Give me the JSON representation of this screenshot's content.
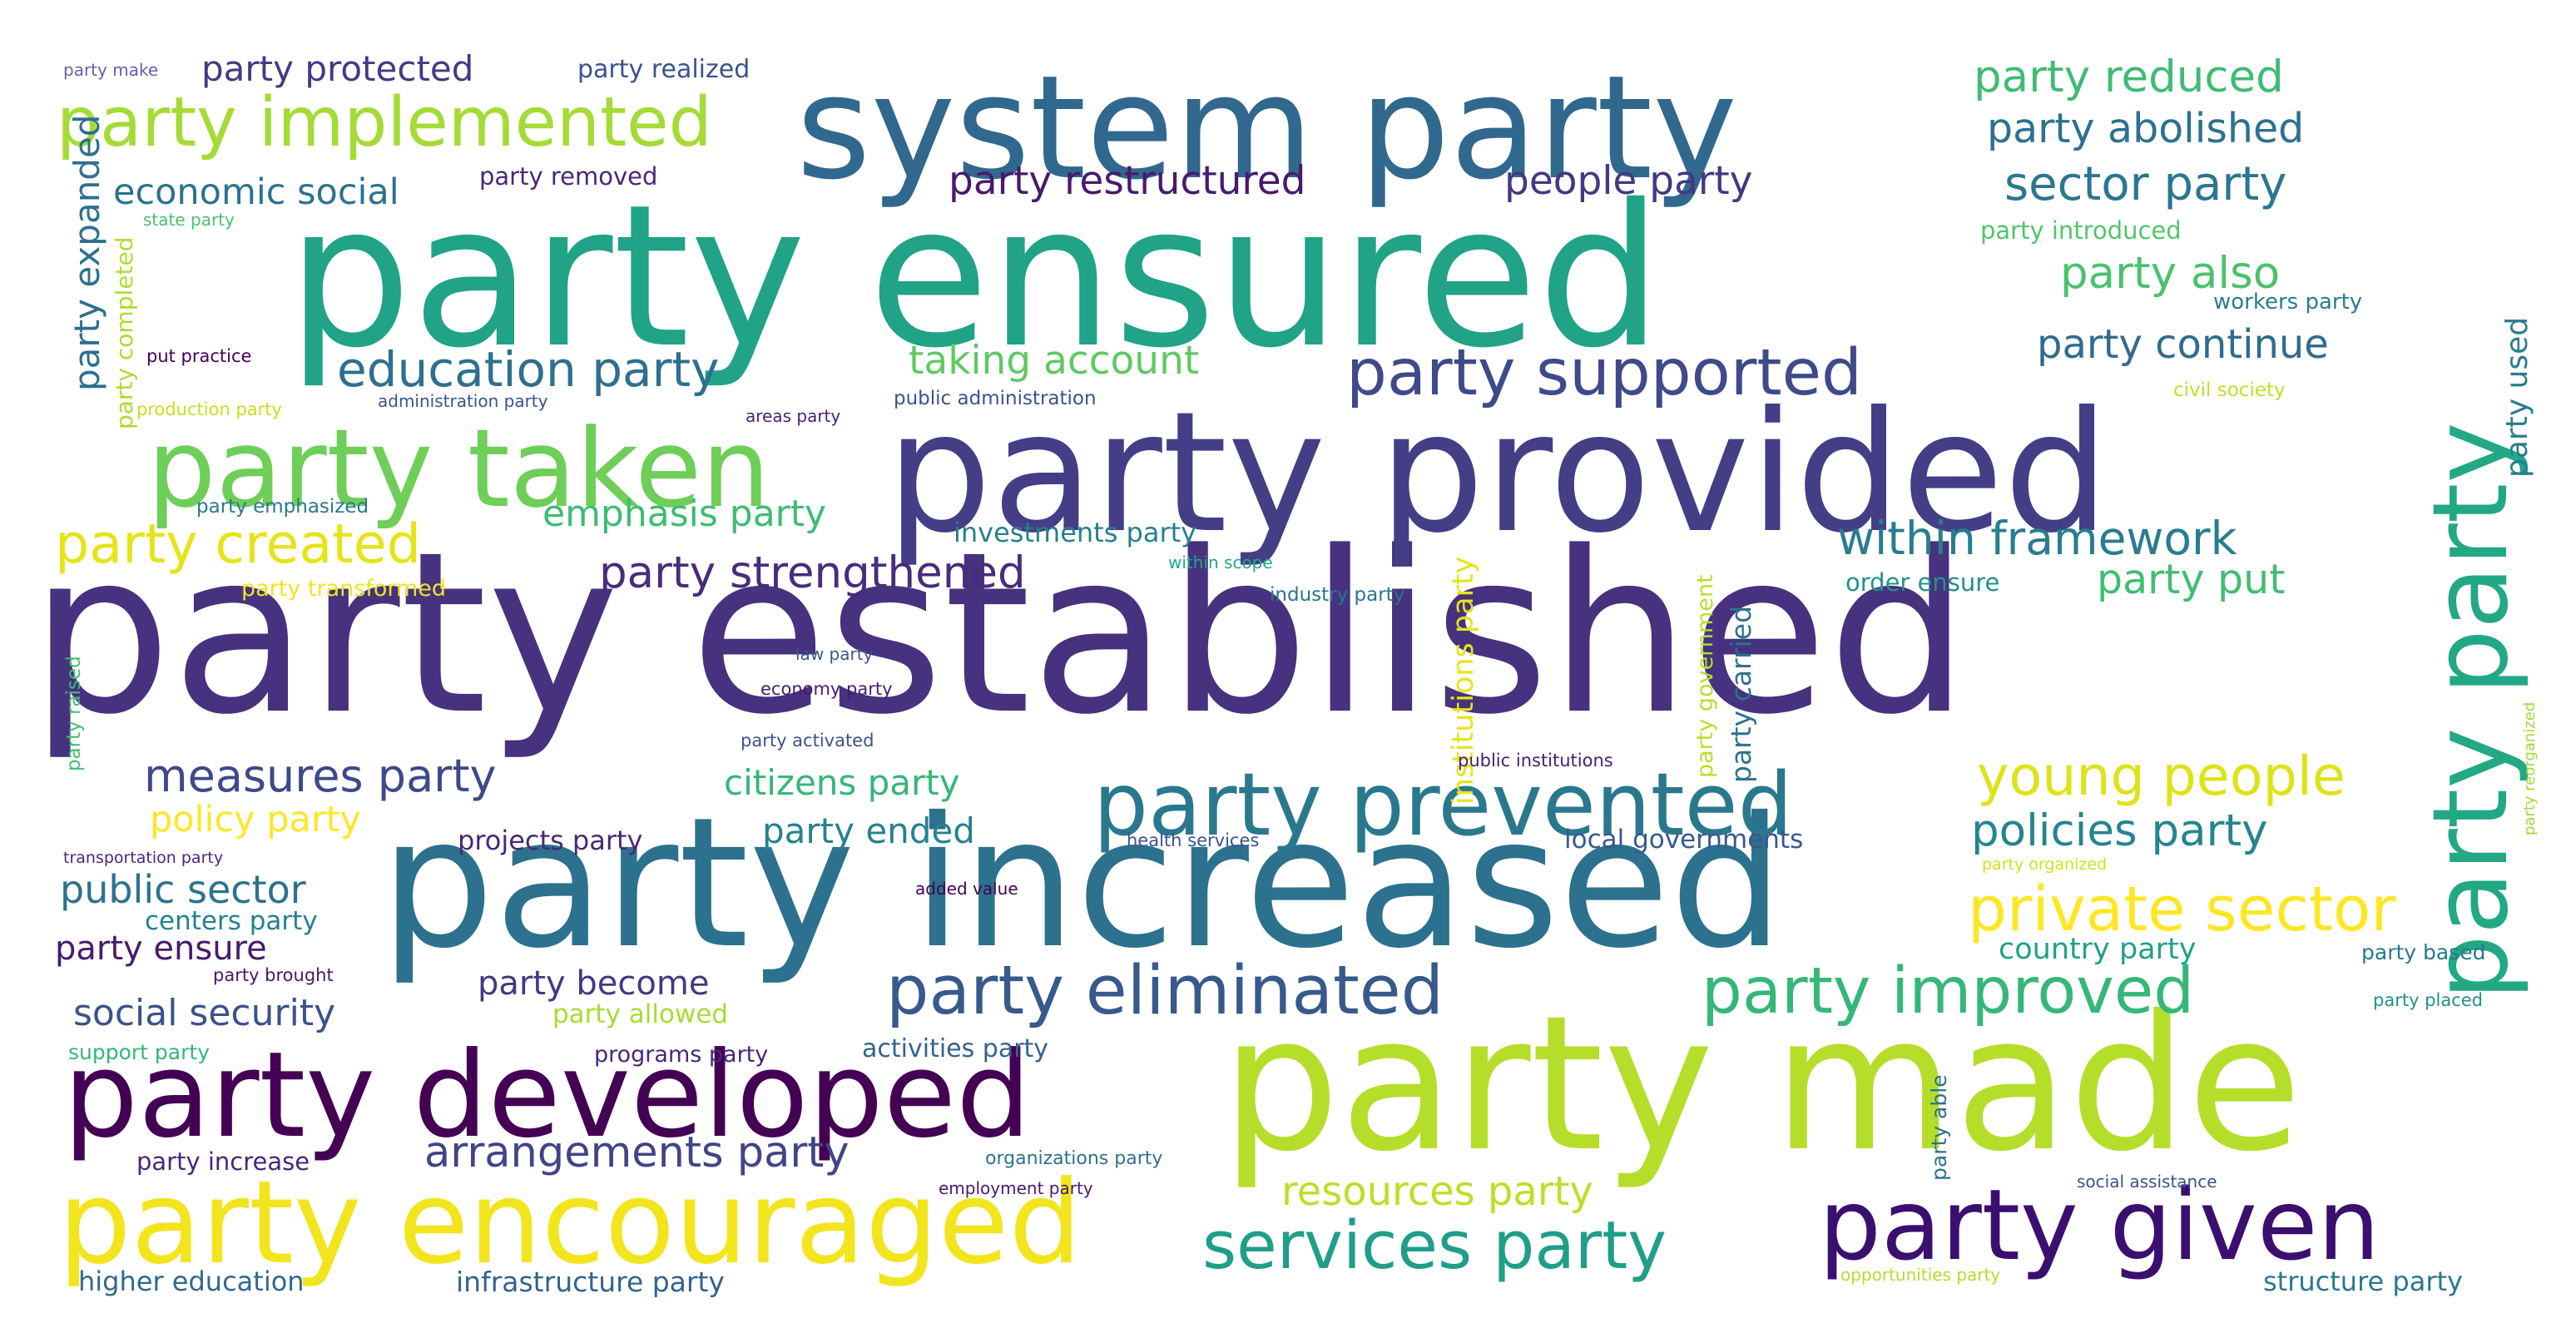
{
  "colors": {
    "background": "#ffffff",
    "palette": [
      "#440154",
      "#482878",
      "#3e4989",
      "#31688e",
      "#26828e",
      "#1f9e89",
      "#35b779",
      "#6ece58",
      "#b5de2b",
      "#fde725"
    ]
  },
  "words": [
    {
      "text": "party established",
      "color": "#46327e"
    },
    {
      "text": "party ensured",
      "color": "#20a386"
    },
    {
      "text": "party increased",
      "color": "#2c718e"
    },
    {
      "text": "party provided",
      "color": "#433e85"
    },
    {
      "text": "party made",
      "color": "#b5de2b"
    },
    {
      "text": "system party",
      "color": "#31688e"
    },
    {
      "text": "party developed",
      "color": "#440154"
    },
    {
      "text": "party encouraged",
      "color": "#f2e51d"
    },
    {
      "text": "party taken",
      "color": "#6ece58"
    },
    {
      "text": "party party",
      "color": "#22a884"
    },
    {
      "text": "party given",
      "color": "#3b0f6f"
    },
    {
      "text": "party prevented",
      "color": "#2a788e"
    },
    {
      "text": "party implemented",
      "color": "#a5db36"
    },
    {
      "text": "party supported",
      "color": "#3e4a89"
    },
    {
      "text": "party eliminated",
      "color": "#38598c"
    },
    {
      "text": "party improved",
      "color": "#35b779"
    },
    {
      "text": "services party",
      "color": "#1f9e89"
    },
    {
      "text": "private sector",
      "color": "#fde725"
    },
    {
      "text": "party created",
      "color": "#e5e419"
    },
    {
      "text": "young people",
      "color": "#dde318"
    },
    {
      "text": "education party",
      "color": "#2d708e"
    },
    {
      "text": "within framework",
      "color": "#287d8e"
    },
    {
      "text": "party strengthened",
      "color": "#472d7b"
    },
    {
      "text": "measures party",
      "color": "#3e4989"
    },
    {
      "text": "arrangements party",
      "color": "#414487"
    },
    {
      "text": "policies party",
      "color": "#25858e"
    },
    {
      "text": "party reduced",
      "color": "#3fbc73"
    },
    {
      "text": "party abolished",
      "color": "#2c728e"
    },
    {
      "text": "sector party",
      "color": "#2a778e"
    },
    {
      "text": "party restructured",
      "color": "#481a6c"
    },
    {
      "text": "people party",
      "color": "#453781"
    },
    {
      "text": "economic social",
      "color": "#2c728e"
    },
    {
      "text": "party protected",
      "color": "#443a83"
    },
    {
      "text": "party realized",
      "color": "#3b528b"
    },
    {
      "text": "party make",
      "color": "#6b5bb0"
    },
    {
      "text": "party removed",
      "color": "#482878"
    },
    {
      "text": "state party",
      "color": "#4ac16d"
    },
    {
      "text": "party expanded",
      "color": "#2d708e"
    },
    {
      "text": "party completed",
      "color": "#addc30"
    },
    {
      "text": "party continue",
      "color": "#2f6c8e"
    },
    {
      "text": "party also",
      "color": "#4ac16d"
    },
    {
      "text": "party introduced",
      "color": "#52c569"
    },
    {
      "text": "workers party",
      "color": "#287d8e"
    },
    {
      "text": "party used",
      "color": "#287d8e"
    },
    {
      "text": "taking account",
      "color": "#5ec962"
    },
    {
      "text": "put practice",
      "color": "#440154"
    },
    {
      "text": "production party",
      "color": "#c8e020"
    },
    {
      "text": "administration party",
      "color": "#3b528b"
    },
    {
      "text": "areas party",
      "color": "#482475"
    },
    {
      "text": "public administration",
      "color": "#3b528b"
    },
    {
      "text": "civil society",
      "color": "#c2df23"
    },
    {
      "text": "party emphasized",
      "color": "#2a788e"
    },
    {
      "text": "emphasis party",
      "color": "#3dbc74"
    },
    {
      "text": "investments party",
      "color": "#277f8e"
    },
    {
      "text": "institutions party",
      "color": "#e7e419"
    },
    {
      "text": "party government",
      "color": "#b8de29"
    },
    {
      "text": "party carried",
      "color": "#2c728e"
    },
    {
      "text": "party transformed",
      "color": "#f1e51d"
    },
    {
      "text": "within scope",
      "color": "#22a884"
    },
    {
      "text": "industry party",
      "color": "#2b748e"
    },
    {
      "text": "order ensure",
      "color": "#21918c"
    },
    {
      "text": "party put",
      "color": "#40bd72"
    },
    {
      "text": "law party",
      "color": "#38598c"
    },
    {
      "text": "economy party",
      "color": "#481b6d"
    },
    {
      "text": "party activated",
      "color": "#3b528b"
    },
    {
      "text": "party raised",
      "color": "#42be71"
    },
    {
      "text": "party reorganized",
      "color": "#a2da37"
    },
    {
      "text": "public institutions",
      "color": "#481f70"
    },
    {
      "text": "citizens party",
      "color": "#35b779"
    },
    {
      "text": "policy party",
      "color": "#fde725"
    },
    {
      "text": "party ended",
      "color": "#26828e"
    },
    {
      "text": "projects party",
      "color": "#482878"
    },
    {
      "text": "health services",
      "color": "#3b528b"
    },
    {
      "text": "local governments",
      "color": "#38598c"
    },
    {
      "text": "transportation party",
      "color": "#482878"
    },
    {
      "text": "party organized",
      "color": "#d0e11c"
    },
    {
      "text": "public sector",
      "color": "#2c728e"
    },
    {
      "text": "added value",
      "color": "#440154"
    },
    {
      "text": "centers party",
      "color": "#26828e"
    },
    {
      "text": "party ensure",
      "color": "#481a6c"
    },
    {
      "text": "country party",
      "color": "#1fa188"
    },
    {
      "text": "party based",
      "color": "#2a788e"
    },
    {
      "text": "party brought",
      "color": "#481769"
    },
    {
      "text": "party become",
      "color": "#453781"
    },
    {
      "text": "social security",
      "color": "#3b528b"
    },
    {
      "text": "party allowed",
      "color": "#a8db34"
    },
    {
      "text": "party placed",
      "color": "#21918c"
    },
    {
      "text": "support party",
      "color": "#35b779"
    },
    {
      "text": "programs party",
      "color": "#482878"
    },
    {
      "text": "activities party",
      "color": "#33638d"
    },
    {
      "text": "party able",
      "color": "#2c728e"
    },
    {
      "text": "party increase",
      "color": "#482878"
    },
    {
      "text": "organizations party",
      "color": "#2c728e"
    },
    {
      "text": "employment party",
      "color": "#481a6c"
    },
    {
      "text": "resources party",
      "color": "#bddf26"
    },
    {
      "text": "social assistance",
      "color": "#3b528b"
    },
    {
      "text": "higher education",
      "color": "#31688e"
    },
    {
      "text": "infrastructure party",
      "color": "#33638d"
    },
    {
      "text": "opportunities party",
      "color": "#b2dd2d"
    },
    {
      "text": "structure party",
      "color": "#2a788e"
    }
  ]
}
